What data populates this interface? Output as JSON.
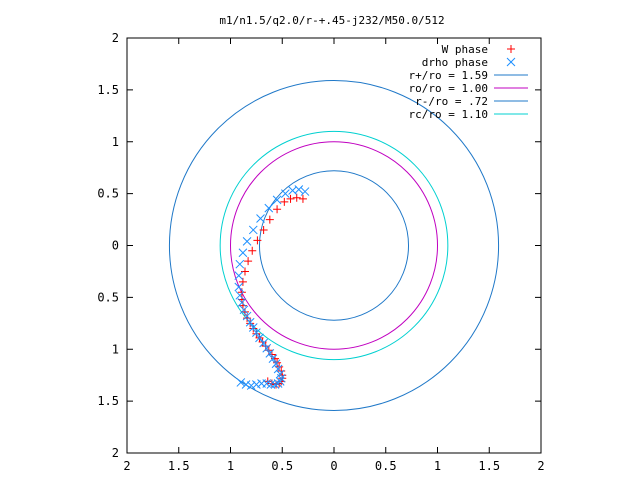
{
  "chart_data": {
    "type": "scatter",
    "title": "m1/n1.5/q2.0/r-+.45-j232/M50.0/512",
    "xlabel": "",
    "ylabel": "",
    "xlim": [
      -2,
      2
    ],
    "ylim": [
      -2,
      2
    ],
    "x_tick_labels": [
      "2",
      "1.5",
      "1",
      "0.5",
      "0",
      "0.5",
      "1",
      "1.5",
      "2"
    ],
    "y_tick_labels": [
      "2",
      "1.5",
      "1",
      "0.5",
      "0",
      "0.5",
      "1",
      "1.5",
      "2"
    ],
    "x_tick_values": [
      -2,
      -1.5,
      -1,
      -0.5,
      0,
      0.5,
      1,
      1.5,
      2
    ],
    "y_tick_values": [
      2,
      1.5,
      1,
      0.5,
      0,
      -0.5,
      -1,
      -1.5,
      -2
    ],
    "grid": false,
    "legend_position": "top-right",
    "series": [
      {
        "name": "W phase",
        "kind": "points",
        "marker": "plus",
        "color": "#ff0000",
        "x": [
          -0.3,
          -0.36,
          -0.42,
          -0.48,
          -0.55,
          -0.62,
          -0.68,
          -0.74,
          -0.79,
          -0.83,
          -0.86,
          -0.88,
          -0.89,
          -0.89,
          -0.88,
          -0.86,
          -0.84,
          -0.81,
          -0.78,
          -0.75,
          -0.72,
          -0.69,
          -0.66,
          -0.63,
          -0.6,
          -0.57,
          -0.55,
          -0.53,
          -0.51,
          -0.5,
          -0.5,
          -0.51,
          -0.53,
          -0.56,
          -0.6,
          -0.64
        ],
        "y": [
          0.45,
          0.46,
          0.45,
          0.42,
          0.35,
          0.25,
          0.15,
          0.05,
          -0.05,
          -0.15,
          -0.25,
          -0.35,
          -0.45,
          -0.52,
          -0.58,
          -0.64,
          -0.7,
          -0.75,
          -0.8,
          -0.85,
          -0.89,
          -0.93,
          -0.97,
          -1.01,
          -1.05,
          -1.09,
          -1.13,
          -1.17,
          -1.21,
          -1.25,
          -1.28,
          -1.31,
          -1.33,
          -1.34,
          -1.33,
          -1.31
        ]
      },
      {
        "name": "drho phase",
        "kind": "points",
        "marker": "cross",
        "color": "#1e90ff",
        "x": [
          -0.28,
          -0.34,
          -0.4,
          -0.47,
          -0.55,
          -0.63,
          -0.71,
          -0.78,
          -0.84,
          -0.88,
          -0.91,
          -0.92,
          -0.92,
          -0.91,
          -0.89,
          -0.87,
          -0.84,
          -0.81,
          -0.78,
          -0.75,
          -0.72,
          -0.68,
          -0.65,
          -0.62,
          -0.59,
          -0.56,
          -0.54,
          -0.52,
          -0.51,
          -0.52,
          -0.54,
          -0.57,
          -0.61,
          -0.65,
          -0.7,
          -0.75,
          -0.8,
          -0.85,
          -0.9
        ],
        "y": [
          0.52,
          0.54,
          0.53,
          0.5,
          0.44,
          0.36,
          0.26,
          0.15,
          0.04,
          -0.07,
          -0.18,
          -0.29,
          -0.4,
          -0.48,
          -0.55,
          -0.62,
          -0.68,
          -0.74,
          -0.79,
          -0.84,
          -0.89,
          -0.94,
          -0.99,
          -1.04,
          -1.09,
          -1.14,
          -1.19,
          -1.24,
          -1.28,
          -1.31,
          -1.33,
          -1.34,
          -1.34,
          -1.33,
          -1.33,
          -1.34,
          -1.35,
          -1.34,
          -1.32
        ]
      },
      {
        "name": "r+/ro = 1.59",
        "kind": "circle",
        "radius": 1.59,
        "color": "#1f78c8"
      },
      {
        "name": "ro/ro = 1.00",
        "kind": "circle",
        "radius": 1.0,
        "color": "#c000c0"
      },
      {
        "name": "r-/ro = .72",
        "kind": "circle",
        "radius": 0.72,
        "color": "#1f78c8"
      },
      {
        "name": "rc/ro = 1.10",
        "kind": "circle",
        "radius": 1.1,
        "color": "#00d0d0"
      }
    ]
  }
}
